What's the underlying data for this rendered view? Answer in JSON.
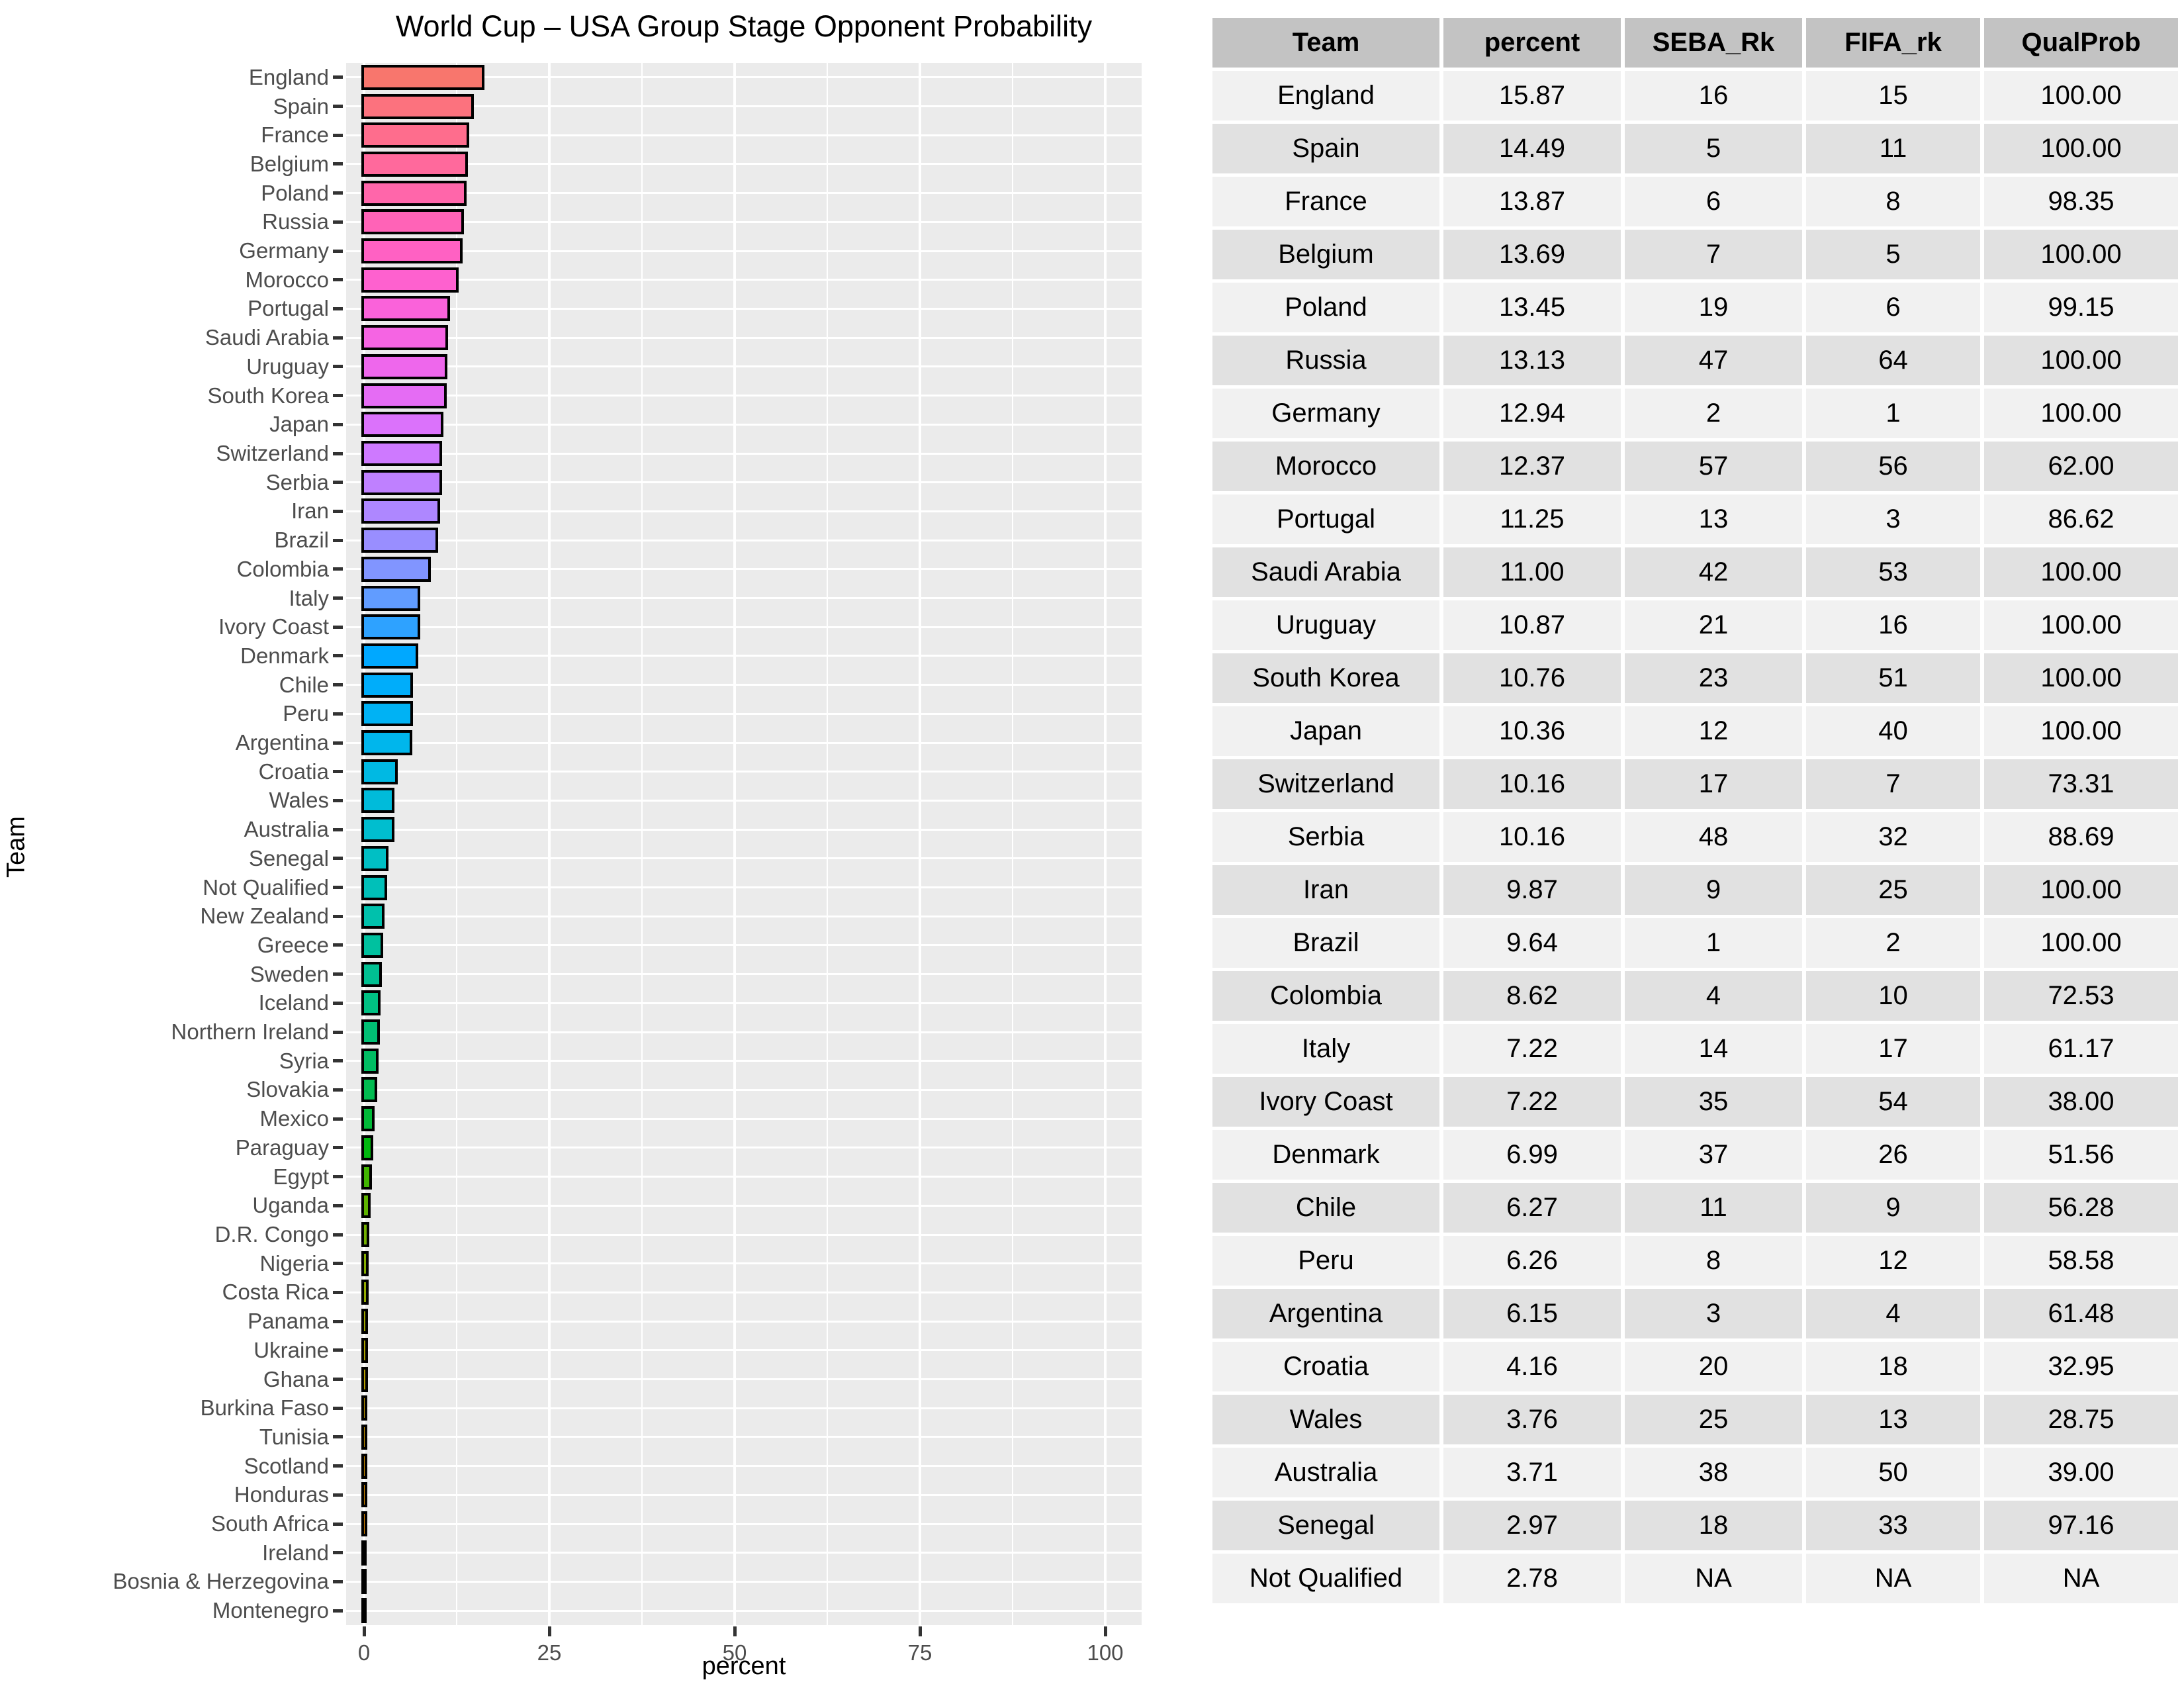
{
  "chart_data": {
    "type": "bar",
    "orientation": "horizontal",
    "title": "World Cup – USA Group Stage Opponent Probability",
    "xlabel": "percent",
    "ylabel": "Team",
    "xlim": [
      0,
      104
    ],
    "x_major_ticks": [
      0,
      25,
      50,
      75,
      100
    ],
    "x_minor_gridlines": [
      12.5,
      37.5,
      62.5,
      87.5
    ],
    "grid": true,
    "legend": false,
    "palette": {
      "model": "hcl",
      "hue_start": 15,
      "hue_step_deg": -6.6667,
      "chroma": 100,
      "luminance": 65
    },
    "categories": [
      "England",
      "Spain",
      "France",
      "Belgium",
      "Poland",
      "Russia",
      "Germany",
      "Morocco",
      "Portugal",
      "Saudi Arabia",
      "Uruguay",
      "South Korea",
      "Japan",
      "Switzerland",
      "Serbia",
      "Iran",
      "Brazil",
      "Colombia",
      "Italy",
      "Ivory Coast",
      "Denmark",
      "Chile",
      "Peru",
      "Argentina",
      "Croatia",
      "Wales",
      "Australia",
      "Senegal",
      "Not Qualified",
      "New Zealand",
      "Greece",
      "Sweden",
      "Iceland",
      "Northern Ireland",
      "Syria",
      "Slovakia",
      "Mexico",
      "Paraguay",
      "Egypt",
      "Uganda",
      "D.R. Congo",
      "Nigeria",
      "Costa Rica",
      "Panama",
      "Ukraine",
      "Ghana",
      "Burkina Faso",
      "Tunisia",
      "Scotland",
      "Honduras",
      "South Africa",
      "Ireland",
      "Bosnia & Herzegovina",
      "Montenegro"
    ],
    "values": [
      15.87,
      14.49,
      13.87,
      13.69,
      13.45,
      13.13,
      12.94,
      12.37,
      11.25,
      11.0,
      10.87,
      10.76,
      10.36,
      10.16,
      10.16,
      9.87,
      9.64,
      8.62,
      7.22,
      7.22,
      6.99,
      6.27,
      6.26,
      6.15,
      4.16,
      3.76,
      3.71,
      2.97,
      2.78,
      2.4,
      2.2,
      2.05,
      1.9,
      1.75,
      1.6,
      1.45,
      1.1,
      0.85,
      0.7,
      0.5,
      0.35,
      0.3,
      0.25,
      0.2,
      0.17,
      0.14,
      0.12,
      0.1,
      0.08,
      0.06,
      0.05,
      0.04,
      0.03,
      0.02
    ]
  },
  "table": {
    "columns": [
      "Team",
      "percent",
      "SEBA_Rk",
      "FIFA_rk",
      "QualProb"
    ],
    "rows": [
      [
        "England",
        "15.87",
        "16",
        "15",
        "100.00"
      ],
      [
        "Spain",
        "14.49",
        "5",
        "11",
        "100.00"
      ],
      [
        "France",
        "13.87",
        "6",
        "8",
        "98.35"
      ],
      [
        "Belgium",
        "13.69",
        "7",
        "5",
        "100.00"
      ],
      [
        "Poland",
        "13.45",
        "19",
        "6",
        "99.15"
      ],
      [
        "Russia",
        "13.13",
        "47",
        "64",
        "100.00"
      ],
      [
        "Germany",
        "12.94",
        "2",
        "1",
        "100.00"
      ],
      [
        "Morocco",
        "12.37",
        "57",
        "56",
        "62.00"
      ],
      [
        "Portugal",
        "11.25",
        "13",
        "3",
        "86.62"
      ],
      [
        "Saudi Arabia",
        "11.00",
        "42",
        "53",
        "100.00"
      ],
      [
        "Uruguay",
        "10.87",
        "21",
        "16",
        "100.00"
      ],
      [
        "South Korea",
        "10.76",
        "23",
        "51",
        "100.00"
      ],
      [
        "Japan",
        "10.36",
        "12",
        "40",
        "100.00"
      ],
      [
        "Switzerland",
        "10.16",
        "17",
        "7",
        "73.31"
      ],
      [
        "Serbia",
        "10.16",
        "48",
        "32",
        "88.69"
      ],
      [
        "Iran",
        "9.87",
        "9",
        "25",
        "100.00"
      ],
      [
        "Brazil",
        "9.64",
        "1",
        "2",
        "100.00"
      ],
      [
        "Colombia",
        "8.62",
        "4",
        "10",
        "72.53"
      ],
      [
        "Italy",
        "7.22",
        "14",
        "17",
        "61.17"
      ],
      [
        "Ivory Coast",
        "7.22",
        "35",
        "54",
        "38.00"
      ],
      [
        "Denmark",
        "6.99",
        "37",
        "26",
        "51.56"
      ],
      [
        "Chile",
        "6.27",
        "11",
        "9",
        "56.28"
      ],
      [
        "Peru",
        "6.26",
        "8",
        "12",
        "58.58"
      ],
      [
        "Argentina",
        "6.15",
        "3",
        "4",
        "61.48"
      ],
      [
        "Croatia",
        "4.16",
        "20",
        "18",
        "32.95"
      ],
      [
        "Wales",
        "3.76",
        "25",
        "13",
        "28.75"
      ],
      [
        "Australia",
        "3.71",
        "38",
        "50",
        "39.00"
      ],
      [
        "Senegal",
        "2.97",
        "18",
        "33",
        "97.16"
      ],
      [
        "Not Qualified",
        "2.78",
        "NA",
        "NA",
        "NA"
      ]
    ]
  },
  "colors": {
    "background": "#FFFFFF",
    "panel_bg": "#EBEBEB",
    "gridline": "#FFFFFF",
    "bar_stroke": "#000000",
    "first_bar_fill": "#F8766D",
    "axis_text": "#4D4D4D",
    "axis_tick": "#333333",
    "axis_title": "#000000",
    "table_header_bg": "#C3C3C3",
    "table_row_light": "#F1F1F1",
    "table_row_dark": "#E1E1E1",
    "table_text": "#000000"
  }
}
